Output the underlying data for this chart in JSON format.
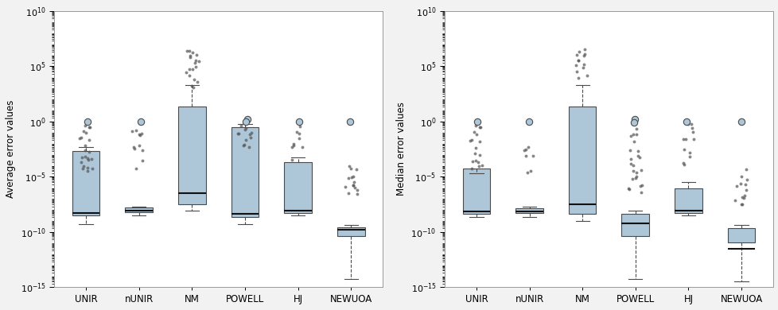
{
  "categories": [
    "UNIR",
    "nUNIR",
    "NM",
    "POWELL",
    "HJ",
    "NEWUOA"
  ],
  "ylabel_left": "Average error values",
  "ylabel_right": "Median error values",
  "ylim": [
    1e-15,
    10000000000.0
  ],
  "ytick_exponents": [
    -15,
    -10,
    -5,
    0,
    5,
    10
  ],
  "box_facecolor": "#adc6d8",
  "box_edgecolor": "#4a4a4a",
  "median_color": "#111111",
  "whisker_color": "#4a4a4a",
  "cap_color": "#4a4a4a",
  "flier_small_color": "#555555",
  "flier_highlight_face": "#adc6d8",
  "flier_highlight_edge": "#4a4a4a",
  "background_color": "#ffffff",
  "figure_facecolor": "#f2f2f2",
  "left_boxes": [
    {
      "label": "UNIR",
      "q1": 3e-09,
      "median": 5e-09,
      "q3": 0.002,
      "whislo": 5e-10,
      "whishi": 0.005,
      "fliers": [
        1.0,
        0.3,
        0.1,
        0.03,
        0.008,
        0.002,
        0.0007,
        0.0003,
        0.0001,
        5e-05
      ],
      "highlight": [
        1.0
      ]
    },
    {
      "label": "nUNIR",
      "q1": 6e-09,
      "median": 8e-09,
      "q3": 1.5e-08,
      "whislo": 3e-09,
      "whishi": 2e-08,
      "fliers": [
        1.0,
        0.15,
        0.05,
        0.01,
        0.003,
        0.0005,
        5e-05
      ],
      "highlight": [
        1.0
      ]
    },
    {
      "label": "NM",
      "q1": 3e-08,
      "median": 3e-07,
      "q3": 20.0,
      "whislo": 8e-09,
      "whishi": 2000.0,
      "fliers": [
        2000000.0,
        800000.0,
        300000.0,
        100000.0,
        40000.0,
        10000.0,
        4000.0,
        1500.0
      ],
      "highlight": []
    },
    {
      "label": "POWELL",
      "q1": 2e-09,
      "median": 4e-09,
      "q3": 0.3,
      "whislo": 5e-10,
      "whishi": 0.6,
      "fliers": [
        1.5,
        0.9,
        0.5,
        0.2,
        0.1,
        0.05,
        0.02,
        0.008,
        0.003
      ],
      "highlight": [
        1.5,
        0.9
      ]
    },
    {
      "label": "HJ",
      "q1": 5e-09,
      "median": 8e-09,
      "q3": 0.0002,
      "whislo": 3e-09,
      "whishi": 0.0005,
      "fliers": [
        1.0,
        0.5,
        0.15,
        0.05,
        0.01,
        0.003,
        0.0005
      ],
      "highlight": [
        1.0
      ]
    },
    {
      "label": "NEWUOA",
      "q1": 4e-11,
      "median": 1.5e-10,
      "q3": 2.5e-10,
      "whislo": 5e-15,
      "whishi": 4e-10,
      "fliers": [
        1.0,
        5e-05,
        1e-05,
        3e-06,
        1e-06,
        3e-07
      ],
      "highlight": [
        1.0
      ]
    }
  ],
  "right_boxes": [
    {
      "label": "UNIR",
      "q1": 4e-09,
      "median": 7e-09,
      "q3": 5e-05,
      "whislo": 2e-09,
      "whishi": 2e-05,
      "fliers": [
        1.0,
        0.3,
        0.08,
        0.02,
        0.005,
        0.001,
        0.0003,
        8e-05
      ],
      "highlight": [
        1.0
      ]
    },
    {
      "label": "nUNIR",
      "q1": 5e-09,
      "median": 7e-09,
      "q3": 1.4e-08,
      "whislo": 2e-09,
      "whishi": 2e-08,
      "fliers": [
        1.0,
        0.003,
        0.0008,
        3e-05
      ],
      "highlight": [
        1.0
      ]
    },
    {
      "label": "NM",
      "q1": 4e-09,
      "median": 3e-08,
      "q3": 20.0,
      "whislo": 1e-09,
      "whishi": 2000.0,
      "fliers": [
        2000000.0,
        800000.0,
        300000.0,
        100000.0,
        30000.0,
        10000.0
      ],
      "highlight": []
    },
    {
      "label": "POWELL",
      "q1": 4e-11,
      "median": 6e-10,
      "q3": 4e-09,
      "whislo": 5e-15,
      "whishi": 8e-09,
      "fliers": [
        1.5,
        0.8,
        0.2,
        0.05,
        0.01,
        0.003,
        0.0005,
        0.0001,
        3e-05,
        8e-06,
        2e-06,
        5e-07
      ],
      "highlight": [
        1.5,
        0.8
      ]
    },
    {
      "label": "HJ",
      "q1": 5e-09,
      "median": 8e-09,
      "q3": 8e-07,
      "whislo": 3e-09,
      "whishi": 3e-06,
      "fliers": [
        1.0,
        0.4,
        0.08,
        0.02,
        0.005,
        0.001,
        0.0002
      ],
      "highlight": [
        1.0
      ]
    },
    {
      "label": "NEWUOA",
      "q1": 1e-11,
      "median": 3e-12,
      "q3": 2e-10,
      "whislo": 3e-15,
      "whishi": 4e-10,
      "fliers": [
        1.0,
        3e-05,
        8e-06,
        2e-06,
        5e-07,
        2e-07,
        5e-08
      ],
      "highlight": [
        1.0
      ]
    }
  ]
}
